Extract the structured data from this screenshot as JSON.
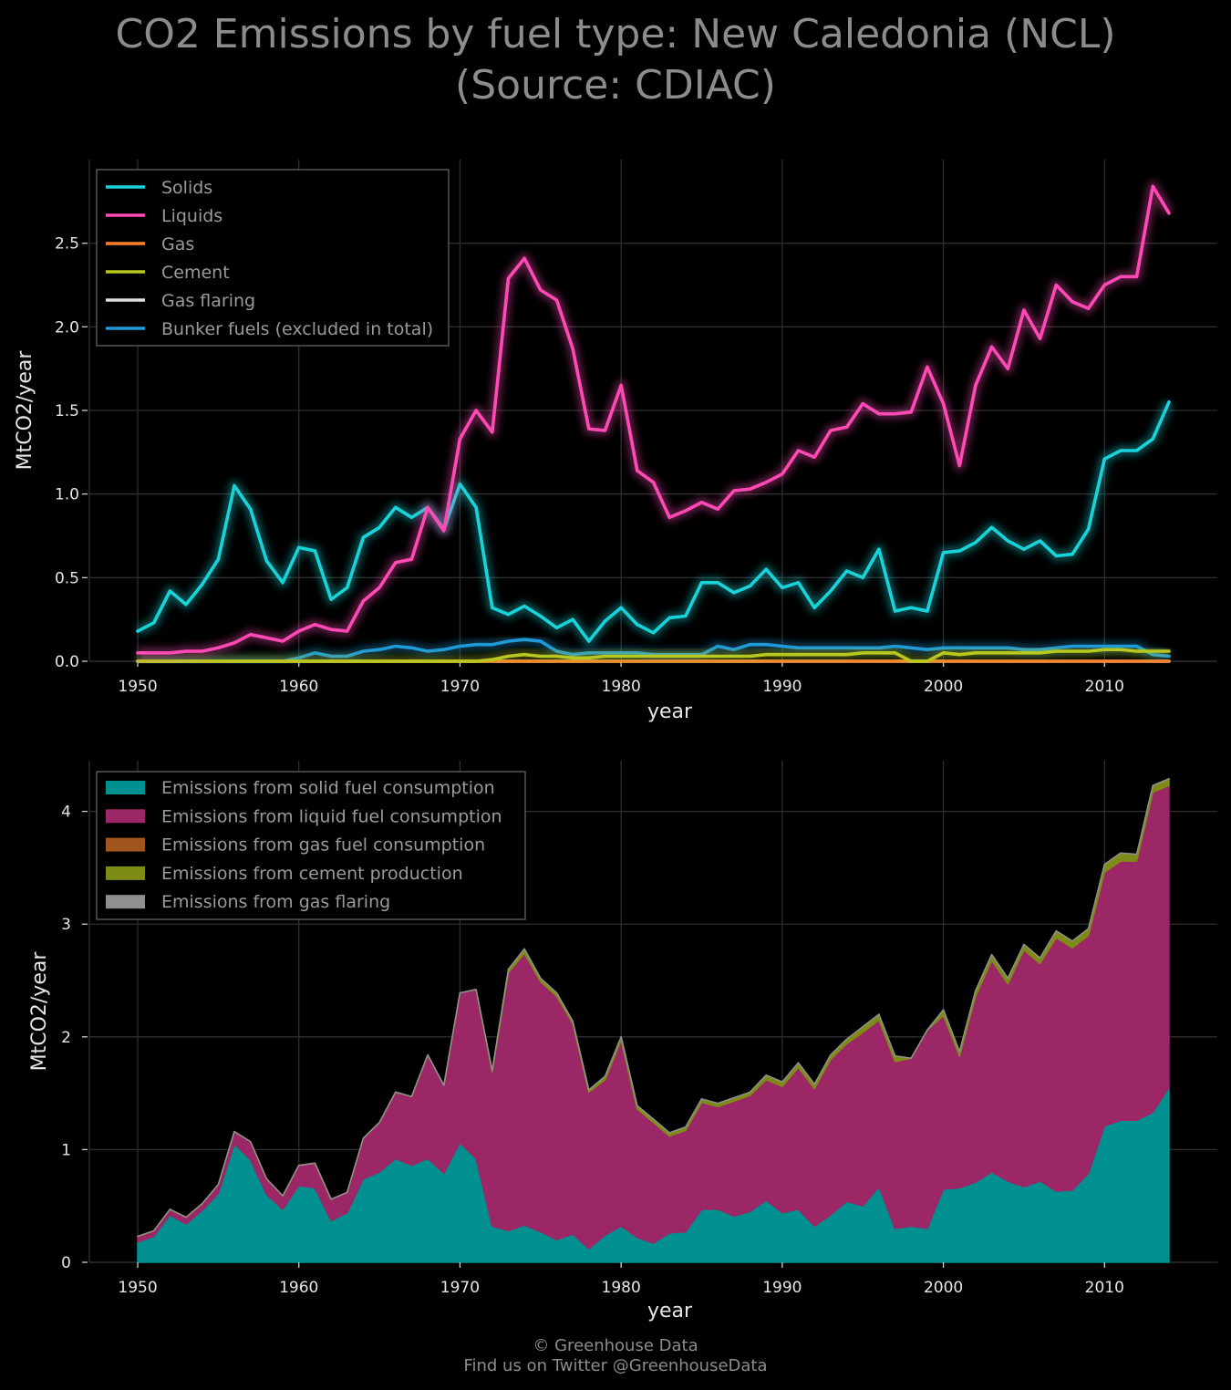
{
  "title": {
    "line1": "CO2 Emissions by fuel type: New Caledonia (NCL)",
    "line2": "(Source: CDIAC)"
  },
  "footer": {
    "line1": "© Greenhouse Data",
    "line2": "Find us on Twitter @GreenhouseData"
  },
  "chart_data": [
    {
      "type": "line",
      "xlabel": "year",
      "ylabel": "MtCO2/year",
      "xlim": [
        1947,
        2017
      ],
      "ylim": [
        0,
        3.0
      ],
      "xticks": [
        1950,
        1960,
        1970,
        1980,
        1990,
        2000,
        2010
      ],
      "yticks": [
        0.0,
        0.5,
        1.0,
        1.5,
        2.0,
        2.5
      ],
      "ytick_labels": [
        "0.0",
        "0.5",
        "1.0",
        "1.5",
        "2.0",
        "2.5"
      ],
      "grid": true,
      "legend_position": "top-left",
      "x": [
        1950,
        1951,
        1952,
        1953,
        1954,
        1955,
        1956,
        1957,
        1958,
        1959,
        1960,
        1961,
        1962,
        1963,
        1964,
        1965,
        1966,
        1967,
        1968,
        1969,
        1970,
        1971,
        1972,
        1973,
        1974,
        1975,
        1976,
        1977,
        1978,
        1979,
        1980,
        1981,
        1982,
        1983,
        1984,
        1985,
        1986,
        1987,
        1988,
        1989,
        1990,
        1991,
        1992,
        1993,
        1994,
        1995,
        1996,
        1997,
        1998,
        1999,
        2000,
        2001,
        2002,
        2003,
        2004,
        2005,
        2006,
        2007,
        2008,
        2009,
        2010,
        2011,
        2012,
        2013,
        2014
      ],
      "series": [
        {
          "name": "Solids",
          "color": "#19d3da",
          "values": [
            0.18,
            0.23,
            0.42,
            0.34,
            0.46,
            0.61,
            1.05,
            0.91,
            0.6,
            0.47,
            0.68,
            0.66,
            0.37,
            0.44,
            0.74,
            0.8,
            0.92,
            0.86,
            0.92,
            0.79,
            1.06,
            0.92,
            0.32,
            0.28,
            0.33,
            0.27,
            0.2,
            0.25,
            0.12,
            0.24,
            0.32,
            0.22,
            0.17,
            0.26,
            0.27,
            0.47,
            0.47,
            0.41,
            0.45,
            0.55,
            0.44,
            0.47,
            0.32,
            0.42,
            0.54,
            0.5,
            0.67,
            0.3,
            0.32,
            0.3,
            0.65,
            0.66,
            0.71,
            0.8,
            0.72,
            0.67,
            0.72,
            0.63,
            0.64,
            0.79,
            1.21,
            1.26,
            1.26,
            1.33,
            1.55
          ]
        },
        {
          "name": "Liquids",
          "color": "#ff49b4",
          "values": [
            0.05,
            0.05,
            0.05,
            0.06,
            0.06,
            0.08,
            0.11,
            0.16,
            0.14,
            0.12,
            0.18,
            0.22,
            0.19,
            0.18,
            0.36,
            0.44,
            0.59,
            0.61,
            0.92,
            0.78,
            1.33,
            1.5,
            1.37,
            2.29,
            2.41,
            2.22,
            2.16,
            1.87,
            1.39,
            1.38,
            1.65,
            1.14,
            1.07,
            0.86,
            0.9,
            0.95,
            0.91,
            1.02,
            1.03,
            1.07,
            1.12,
            1.26,
            1.22,
            1.38,
            1.4,
            1.54,
            1.48,
            1.48,
            1.49,
            1.76,
            1.54,
            1.17,
            1.65,
            1.88,
            1.75,
            2.1,
            1.93,
            2.25,
            2.15,
            2.11,
            2.25,
            2.3,
            2.3,
            2.84,
            2.68
          ]
        },
        {
          "name": "Gas",
          "color": "#ff7f2a",
          "values": [
            0,
            0,
            0,
            0,
            0,
            0,
            0,
            0,
            0,
            0,
            0,
            0,
            0,
            0,
            0,
            0,
            0,
            0,
            0,
            0,
            0,
            0,
            0,
            0,
            0,
            0,
            0,
            0,
            0,
            0,
            0,
            0,
            0,
            0,
            0,
            0,
            0,
            0,
            0,
            0,
            0,
            0,
            0,
            0,
            0,
            0,
            0,
            0,
            0,
            0,
            0,
            0,
            0,
            0,
            0,
            0,
            0,
            0,
            0,
            0,
            0,
            0,
            0,
            0,
            0
          ]
        },
        {
          "name": "Cement",
          "color": "#b8c81f",
          "values": [
            0,
            0,
            0,
            0,
            0,
            0,
            0,
            0,
            0,
            0,
            0,
            0,
            0,
            0,
            0,
            0,
            0,
            0,
            0,
            0,
            0,
            0,
            0.01,
            0.03,
            0.04,
            0.03,
            0.03,
            0.02,
            0.02,
            0.03,
            0.03,
            0.03,
            0.03,
            0.03,
            0.03,
            0.03,
            0.03,
            0.03,
            0.03,
            0.04,
            0.04,
            0.04,
            0.04,
            0.04,
            0.04,
            0.05,
            0.05,
            0.05,
            0.0,
            0.0,
            0.05,
            0.04,
            0.05,
            0.05,
            0.05,
            0.05,
            0.05,
            0.06,
            0.06,
            0.06,
            0.07,
            0.07,
            0.06,
            0.06,
            0.06
          ]
        },
        {
          "name": "Gas flaring",
          "color": "#e0e0e0",
          "values": [
            0,
            0,
            0,
            0,
            0,
            0,
            0,
            0,
            0,
            0,
            0,
            0,
            0,
            0,
            0,
            0,
            0,
            0,
            0,
            0,
            0,
            0,
            0,
            0,
            0,
            0,
            0,
            0,
            0,
            0,
            0,
            0,
            0,
            0,
            0,
            0,
            0,
            0,
            0,
            0,
            0,
            0,
            0,
            0,
            0,
            0,
            0,
            0,
            0,
            0,
            0,
            0,
            0,
            0,
            0,
            0,
            0,
            0,
            0,
            0,
            0,
            0,
            0,
            0,
            0
          ]
        },
        {
          "name": "Bunker fuels (excluded in total)",
          "color": "#1f9ad8",
          "values": [
            0,
            0,
            0,
            0,
            0,
            0,
            0,
            0,
            0,
            0,
            0.02,
            0.05,
            0.03,
            0.03,
            0.06,
            0.07,
            0.09,
            0.08,
            0.06,
            0.07,
            0.09,
            0.1,
            0.1,
            0.12,
            0.13,
            0.12,
            0.06,
            0.04,
            0.05,
            0.05,
            0.05,
            0.05,
            0.04,
            0.04,
            0.04,
            0.04,
            0.09,
            0.07,
            0.1,
            0.1,
            0.09,
            0.08,
            0.08,
            0.08,
            0.08,
            0.08,
            0.08,
            0.09,
            0.08,
            0.07,
            0.08,
            0.08,
            0.08,
            0.08,
            0.08,
            0.07,
            0.07,
            0.08,
            0.09,
            0.09,
            0.09,
            0.09,
            0.09,
            0.04,
            0.03
          ]
        }
      ]
    },
    {
      "type": "area",
      "stacked": true,
      "xlabel": "year",
      "ylabel": "MtCO2/year",
      "xlim": [
        1947,
        2017
      ],
      "ylim": [
        0,
        4.45
      ],
      "xticks": [
        1950,
        1960,
        1970,
        1980,
        1990,
        2000,
        2010
      ],
      "yticks": [
        0,
        1,
        2,
        3,
        4
      ],
      "ytick_labels": [
        "0",
        "1",
        "2",
        "3",
        "4"
      ],
      "grid": true,
      "legend_position": "top-left",
      "series": [
        {
          "name": "Emissions from solid fuel consumption",
          "color": "#00908f",
          "source": "Solids"
        },
        {
          "name": "Emissions from liquid fuel consumption",
          "color": "#9b2767",
          "source": "Liquids"
        },
        {
          "name": "Emissions from gas fuel consumption",
          "color": "#a0561c",
          "source": "Gas"
        },
        {
          "name": "Emissions from cement production",
          "color": "#7e8b16",
          "source": "Cement"
        },
        {
          "name": "Emissions from gas flaring",
          "color": "#8f8f8f",
          "source": "Gas flaring"
        }
      ]
    }
  ]
}
